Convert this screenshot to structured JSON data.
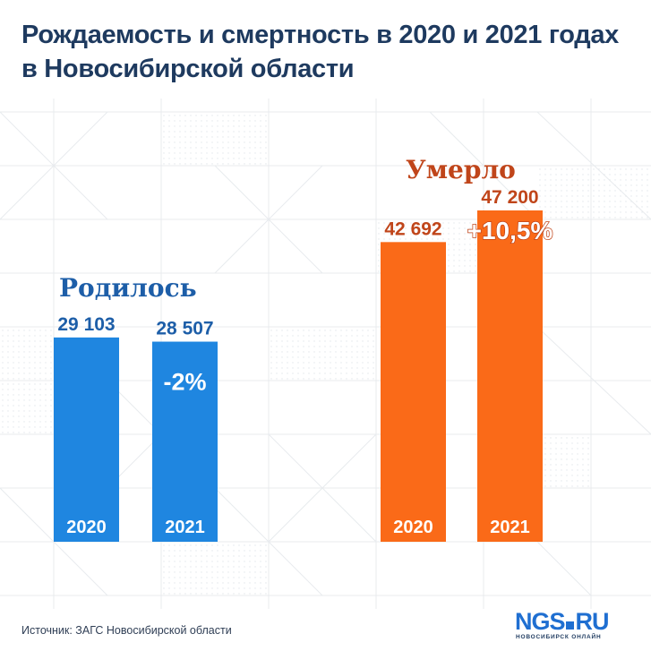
{
  "title": {
    "line1": "Рождаемость и смертность в 2020 и 2021 годах",
    "line2": "в Новосибирской области"
  },
  "chart_data": {
    "type": "bar",
    "groups": [
      {
        "label": "Родилось",
        "color": "#1f86e0",
        "label_color": "#1d5ea8",
        "change": "-2%",
        "categories": [
          "2020",
          "2021"
        ],
        "values": [
          29103,
          28507
        ],
        "value_labels": [
          "29 103",
          "28 507"
        ]
      },
      {
        "label": "Умерло",
        "color": "#fa6a18",
        "label_color": "#c0451a",
        "change": "+10,5%",
        "categories": [
          "2020",
          "2021"
        ],
        "values": [
          42692,
          47200
        ],
        "value_labels": [
          "42 692",
          "47 200"
        ]
      }
    ]
  },
  "footer": {
    "source": "Источник: ЗАГС Новосибирской области",
    "logo": "NGS",
    "logo_suffix": "RU",
    "logo_sub": "НОВОСИБИРСК ОНЛАЙН"
  }
}
